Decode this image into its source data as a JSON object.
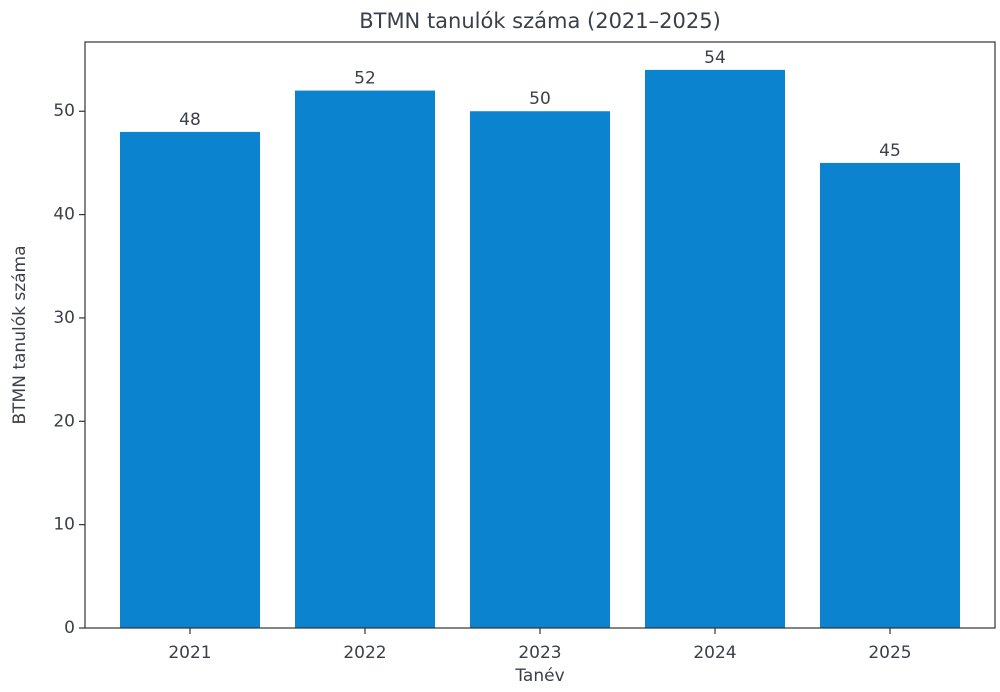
{
  "chart_data": {
    "type": "bar",
    "title": "BTMN tanulók száma (2021–2025)",
    "xlabel": "Tanév",
    "ylabel": "BTMN tanulók száma",
    "categories": [
      "2021",
      "2022",
      "2023",
      "2024",
      "2025"
    ],
    "values": [
      48,
      52,
      50,
      54,
      45
    ],
    "color": "#0b83cf",
    "ylim": [
      0,
      56.7
    ],
    "yticks": [
      0,
      10,
      20,
      30,
      40,
      50
    ],
    "grid": false
  }
}
